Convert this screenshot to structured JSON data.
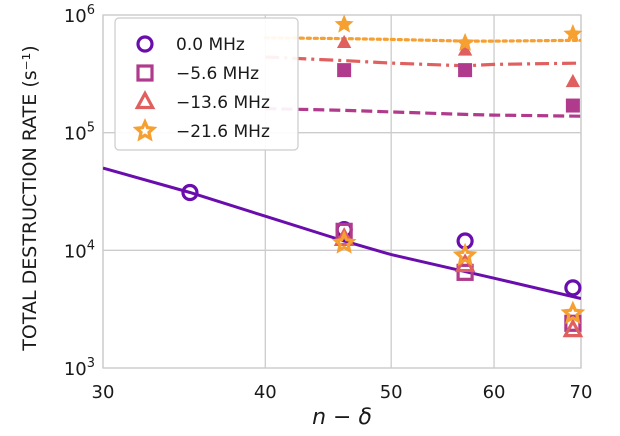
{
  "chart_data": {
    "type": "scatter",
    "title": "",
    "xlabel": "n − δ",
    "ylabel": "TOTAL DESTRUCTION RATE (s⁻¹)",
    "x_scale": "log",
    "y_scale": "log",
    "xlim": [
      30,
      70
    ],
    "ylim": [
      1000,
      1000000
    ],
    "x_ticks": [
      30,
      40,
      50,
      60,
      70
    ],
    "x_tick_labels": [
      "30",
      "40",
      "50",
      "60",
      "70"
    ],
    "y_ticks": [
      1000,
      10000,
      100000,
      1000000
    ],
    "y_tick_labels": [
      {
        "base": "10",
        "exp": "3"
      },
      {
        "base": "10",
        "exp": "4"
      },
      {
        "base": "10",
        "exp": "5"
      },
      {
        "base": "10",
        "exp": "6"
      }
    ],
    "grid": true,
    "legend_position": "top-left",
    "series": [
      {
        "name": "0.0 MHz",
        "color": "#6a0dad",
        "marker": "circle",
        "line_style": "solid",
        "points": [
          [
            35,
            31000
          ],
          [
            46,
            15000
          ],
          [
            57,
            12000
          ],
          [
            69,
            4800
          ]
        ],
        "line": [
          [
            30,
            50000
          ],
          [
            35,
            31000
          ],
          [
            40,
            19500
          ],
          [
            46,
            12000
          ],
          [
            50,
            9200
          ],
          [
            57,
            6600
          ],
          [
            60,
            5800
          ],
          [
            70,
            3900
          ]
        ]
      },
      {
        "name": "−5.6 MHz",
        "color": "#b03a8c",
        "marker": "square",
        "line_style": "dashed",
        "points": [
          [
            46,
            340000
          ],
          [
            57,
            340000
          ],
          [
            69,
            170000
          ],
          [
            46,
            14500
          ],
          [
            57,
            6500
          ],
          [
            69,
            2400
          ]
        ],
        "line": [
          [
            40,
            160000
          ],
          [
            46,
            155000
          ],
          [
            50,
            150000
          ],
          [
            57,
            143000
          ],
          [
            60,
            141000
          ],
          [
            70,
            138000
          ]
        ]
      },
      {
        "name": "−13.6 MHz",
        "color": "#e06060",
        "marker": "triangle",
        "line_style": "dashdot",
        "points": [
          [
            46,
            580000
          ],
          [
            57,
            500000
          ],
          [
            69,
            270000
          ],
          [
            46,
            12500
          ],
          [
            57,
            7500
          ],
          [
            69,
            2100
          ]
        ],
        "line": [
          [
            40,
            440000
          ],
          [
            46,
            410000
          ],
          [
            50,
            390000
          ],
          [
            57,
            370000
          ],
          [
            60,
            380000
          ],
          [
            70,
            390000
          ]
        ]
      },
      {
        "name": "−21.6 MHz",
        "color": "#f5a030",
        "marker": "star",
        "line_style": "dotted",
        "points": [
          [
            46,
            830000
          ],
          [
            57,
            580000
          ],
          [
            69,
            690000
          ],
          [
            46,
            11500
          ],
          [
            57,
            9000
          ],
          [
            69,
            2900
          ]
        ],
        "line": [
          [
            40,
            640000
          ],
          [
            46,
            630000
          ],
          [
            50,
            620000
          ],
          [
            57,
            600000
          ],
          [
            60,
            600000
          ],
          [
            70,
            610000
          ]
        ]
      }
    ]
  }
}
